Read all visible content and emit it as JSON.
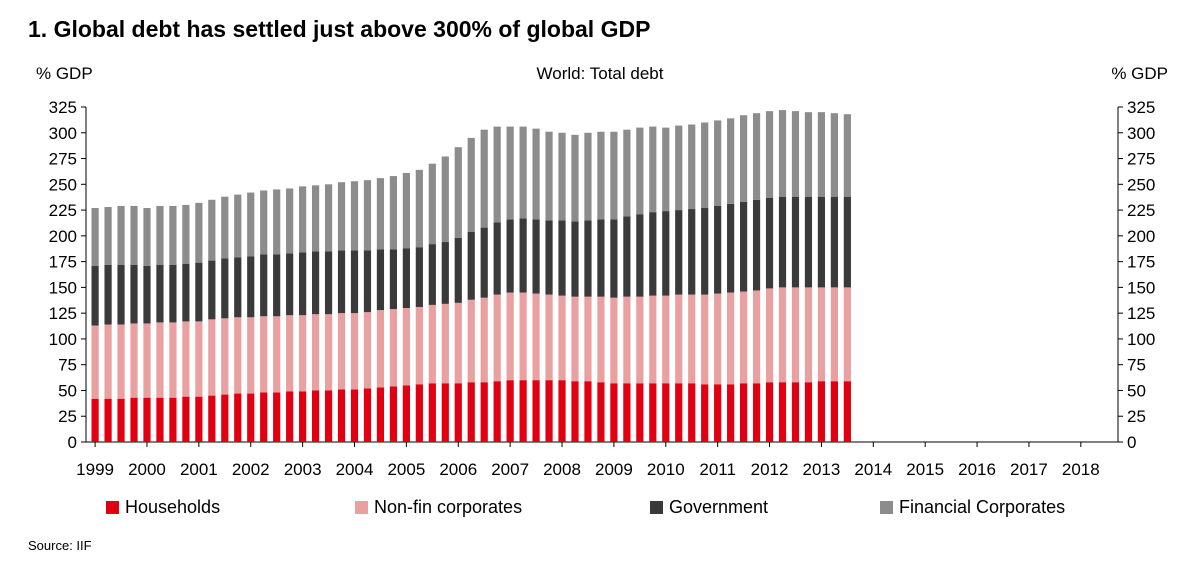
{
  "title": "1. Global debt has settled just above 300% of global GDP",
  "source": "Source: IIF",
  "chart_data": {
    "type": "bar",
    "stacked": true,
    "title": "World: Total debt",
    "ylabel_left": "% GDP",
    "ylabel_right": "% GDP",
    "ylim": [
      0,
      325
    ],
    "yticks": [
      0,
      25,
      50,
      75,
      100,
      125,
      150,
      175,
      200,
      225,
      250,
      275,
      300,
      325
    ],
    "x_labels": [
      "1999",
      "2000",
      "2001",
      "2002",
      "2003",
      "2004",
      "2005",
      "2006",
      "2007",
      "2008",
      "2009",
      "2010",
      "2011",
      "2012",
      "2013",
      "2014",
      "2015",
      "2016",
      "2017",
      "2018"
    ],
    "x_label_positions": [
      0,
      4,
      8,
      12,
      16,
      20,
      24,
      28,
      32,
      36,
      40,
      44,
      48,
      52,
      56,
      60,
      64,
      68,
      72,
      76
    ],
    "grid": false,
    "legend_position": "bottom",
    "series": [
      {
        "name": "Households",
        "color": "#e00012",
        "values": [
          42,
          42,
          42,
          43,
          43,
          43,
          43,
          44,
          44,
          45,
          46,
          47,
          47,
          48,
          48,
          49,
          49,
          50,
          50,
          51,
          51,
          52,
          53,
          54,
          55,
          56,
          57,
          57,
          57,
          58,
          58,
          59,
          60,
          60,
          60,
          60,
          60,
          59,
          59,
          58,
          57,
          57,
          57,
          57,
          57,
          57,
          57,
          56,
          56,
          56,
          57,
          57,
          58,
          58,
          58,
          58,
          59,
          59,
          59
        ]
      },
      {
        "name": "Non-fin corporates",
        "color": "#e8a0a0",
        "values": [
          71,
          72,
          72,
          72,
          72,
          73,
          73,
          73,
          73,
          74,
          74,
          74,
          74,
          74,
          74,
          74,
          74,
          74,
          74,
          74,
          74,
          74,
          75,
          75,
          75,
          75,
          76,
          77,
          78,
          80,
          82,
          84,
          85,
          85,
          84,
          83,
          82,
          82,
          82,
          83,
          83,
          84,
          84,
          85,
          85,
          86,
          86,
          87,
          88,
          89,
          89,
          90,
          91,
          92,
          92,
          92,
          91,
          91,
          91
        ]
      },
      {
        "name": "Government",
        "color": "#3a3a3a",
        "values": [
          58,
          58,
          58,
          57,
          56,
          56,
          56,
          56,
          57,
          57,
          58,
          58,
          59,
          60,
          60,
          60,
          61,
          61,
          61,
          61,
          61,
          60,
          59,
          58,
          58,
          58,
          59,
          60,
          63,
          66,
          68,
          70,
          71,
          72,
          72,
          72,
          73,
          73,
          74,
          75,
          76,
          78,
          80,
          81,
          82,
          82,
          83,
          84,
          85,
          86,
          87,
          88,
          88,
          88,
          88,
          88,
          88,
          88,
          88
        ]
      },
      {
        "name": "Financial Corporates",
        "color": "#8c8c8c",
        "values": [
          56,
          56,
          57,
          57,
          56,
          57,
          57,
          57,
          58,
          59,
          60,
          61,
          62,
          62,
          63,
          63,
          64,
          64,
          65,
          66,
          67,
          68,
          69,
          71,
          73,
          75,
          78,
          83,
          88,
          91,
          95,
          93,
          90,
          89,
          88,
          86,
          85,
          84,
          85,
          85,
          85,
          84,
          84,
          83,
          81,
          82,
          82,
          83,
          83,
          83,
          84,
          84,
          84,
          84,
          83,
          82,
          82,
          81,
          80
        ]
      }
    ]
  }
}
